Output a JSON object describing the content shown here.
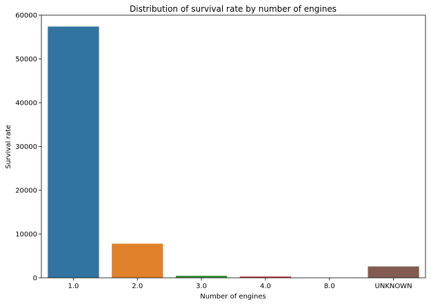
{
  "chart_data": {
    "type": "bar",
    "title": "Distribution of survival rate by number of engines",
    "xlabel": "Number of engines",
    "ylabel": "Survival rate",
    "categories": [
      "1.0",
      "2.0",
      "3.0",
      "4.0",
      "8.0",
      "UNKNOWN"
    ],
    "values": [
      57400,
      7800,
      470,
      300,
      10,
      2600
    ],
    "colors": [
      "#3274a1",
      "#e1812c",
      "#3a923a",
      "#c03d3e",
      "#9372b2",
      "#845b53"
    ],
    "ylim": [
      0,
      60000
    ],
    "yticks": [
      0,
      10000,
      20000,
      30000,
      40000,
      50000,
      60000
    ],
    "ytick_labels": [
      "0",
      "10000",
      "20000",
      "30000",
      "40000",
      "50000",
      "60000"
    ],
    "grid": false,
    "legend": "none"
  }
}
